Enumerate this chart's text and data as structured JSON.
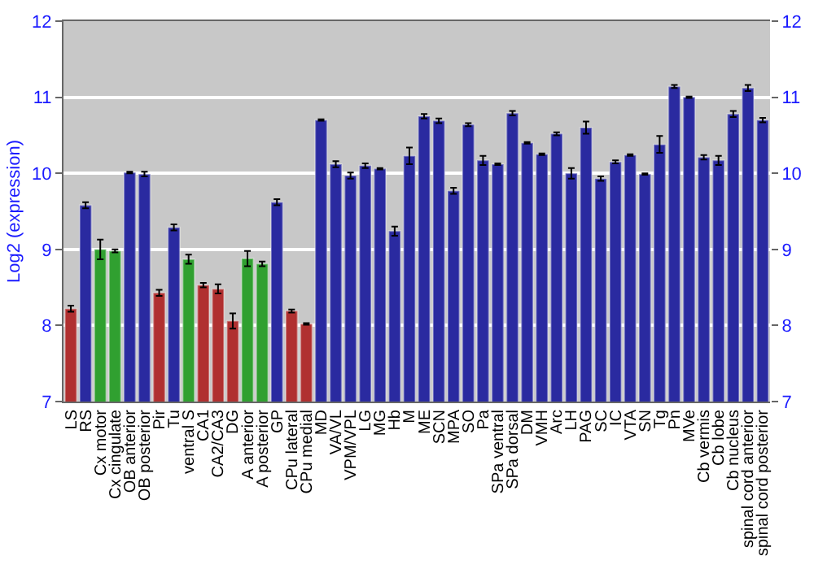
{
  "chart_data": {
    "type": "bar",
    "ylabel": "Log2 (expression)",
    "categories": [
      "LS",
      "RS",
      "Cx motor",
      "Cx cingulate",
      "OB anterior",
      "OB posterior",
      "Pir",
      "Tu",
      "ventral S",
      "CA1",
      "CA2/CA3",
      "DG",
      "A anterior",
      "A posterior",
      "GP",
      "CPu lateral",
      "CPu medial",
      "MD",
      "VA/VL",
      "VPM/VPL",
      "LG",
      "MG",
      "Hb",
      "M",
      "ME",
      "SCN",
      "MPA",
      "SO",
      "Pa",
      "SPa ventral",
      "SPa dorsal",
      "DM",
      "VMH",
      "Arc",
      "LH",
      "PAG",
      "SC",
      "IC",
      "VTA",
      "SN",
      "Tg",
      "Pn",
      "MVe",
      "Cb vermis",
      "Cb lobe",
      "Cb nucleus",
      "spinal cord anterior",
      "spinal cord posterior"
    ],
    "values": [
      8.22,
      9.58,
      9.0,
      8.98,
      10.01,
      9.99,
      8.43,
      9.29,
      8.87,
      8.53,
      8.48,
      8.06,
      8.88,
      8.81,
      9.62,
      8.19,
      8.02,
      10.7,
      10.12,
      9.97,
      10.1,
      10.06,
      9.24,
      10.23,
      10.75,
      10.69,
      9.77,
      10.64,
      10.17,
      10.12,
      10.79,
      10.4,
      10.25,
      10.52,
      10.0,
      10.6,
      9.93,
      10.15,
      10.24,
      9.99,
      10.38,
      11.14,
      11.0,
      10.21,
      10.17,
      10.78,
      11.12,
      10.7
    ],
    "errors": [
      0.04,
      0.04,
      0.13,
      0.02,
      0.01,
      0.03,
      0.04,
      0.04,
      0.06,
      0.03,
      0.06,
      0.1,
      0.1,
      0.03,
      0.04,
      0.02,
      0.01,
      0.01,
      0.04,
      0.04,
      0.03,
      0.01,
      0.06,
      0.11,
      0.03,
      0.03,
      0.04,
      0.02,
      0.06,
      0.01,
      0.03,
      0.01,
      0.01,
      0.02,
      0.07,
      0.08,
      0.03,
      0.02,
      0.01,
      0.01,
      0.11,
      0.02,
      0.01,
      0.03,
      0.06,
      0.04,
      0.04,
      0.03
    ],
    "colors": [
      "#b03030",
      "#2a2aa0",
      "#30a030",
      "#30a030",
      "#2a2aa0",
      "#2a2aa0",
      "#b03030",
      "#2a2aa0",
      "#30a030",
      "#b03030",
      "#b03030",
      "#b03030",
      "#30a030",
      "#30a030",
      "#2a2aa0",
      "#b03030",
      "#b03030",
      "#2a2aa0",
      "#2a2aa0",
      "#2a2aa0",
      "#2a2aa0",
      "#2a2aa0",
      "#2a2aa0",
      "#2a2aa0",
      "#2a2aa0",
      "#2a2aa0",
      "#2a2aa0",
      "#2a2aa0",
      "#2a2aa0",
      "#2a2aa0",
      "#2a2aa0",
      "#2a2aa0",
      "#2a2aa0",
      "#2a2aa0",
      "#2a2aa0",
      "#2a2aa0",
      "#2a2aa0",
      "#2a2aa0",
      "#2a2aa0",
      "#2a2aa0",
      "#2a2aa0",
      "#2a2aa0",
      "#2a2aa0",
      "#2a2aa0",
      "#2a2aa0",
      "#2a2aa0",
      "#2a2aa0",
      "#2a2aa0"
    ],
    "ylim": [
      7,
      12
    ],
    "yticks": [
      7,
      8,
      9,
      10,
      11,
      12
    ],
    "y2lim": [
      7,
      12
    ],
    "y2ticks": [
      7,
      8,
      9,
      10,
      11,
      12
    ],
    "grid": "y"
  }
}
